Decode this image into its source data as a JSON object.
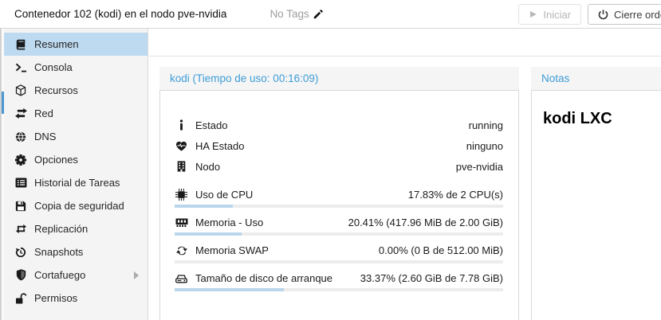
{
  "header": {
    "title": "Contenedor 102 (kodi) en el nodo pve-nvidia",
    "tags_label": "No Tags",
    "start_button": "Iniciar",
    "shutdown_button": "Cierre ordenado"
  },
  "sidebar": {
    "items": [
      {
        "label": "Resumen",
        "icon": "book-icon",
        "selected": true
      },
      {
        "label": "Consola",
        "icon": "terminal-icon",
        "selected": false
      },
      {
        "label": "Recursos",
        "icon": "cube-icon",
        "selected": false
      },
      {
        "label": "Red",
        "icon": "network-arrows-icon",
        "selected": false
      },
      {
        "label": "DNS",
        "icon": "globe-icon",
        "selected": false
      },
      {
        "label": "Opciones",
        "icon": "gear-icon",
        "selected": false
      },
      {
        "label": "Historial de Tareas",
        "icon": "list-icon",
        "selected": false
      },
      {
        "label": "Copia de seguridad",
        "icon": "floppy-icon",
        "selected": false
      },
      {
        "label": "Replicación",
        "icon": "repeat-icon",
        "selected": false
      },
      {
        "label": "Snapshots",
        "icon": "history-icon",
        "selected": false
      },
      {
        "label": "Cortafuego",
        "icon": "shield-icon",
        "selected": false,
        "has_submenu": true
      },
      {
        "label": "Permisos",
        "icon": "unlock-icon",
        "selected": false
      }
    ]
  },
  "status_panel": {
    "title": "kodi (Tiempo de uso: 00:16:09)",
    "rows": [
      {
        "icon": "info-icon",
        "label": "Estado",
        "value": "running"
      },
      {
        "icon": "heartbeat-icon",
        "label": "HA Estado",
        "value": "ninguno"
      },
      {
        "icon": "building-icon",
        "label": "Nodo",
        "value": "pve-nvidia"
      }
    ],
    "meters": [
      {
        "icon": "cpu-icon",
        "label": "Uso de CPU",
        "value": "17.83% de 2 CPU(s)",
        "percent": 17.83
      },
      {
        "icon": "memory-icon",
        "label": "Memoria - Uso",
        "value": "20.41% (417.96 MiB de 2.00 GiB)",
        "percent": 20.41
      },
      {
        "icon": "swap-icon",
        "label": "Memoria SWAP",
        "value": "0.00% (0 B de 512.00 MiB)",
        "percent": 0
      },
      {
        "icon": "disk-icon",
        "label": "Tamaño de disco de arranque",
        "value": "33.37% (2.60 GiB de 7.78 GiB)",
        "percent": 33.37
      }
    ]
  },
  "notes_panel": {
    "title": "Notas",
    "content": "kodi LXC"
  },
  "colors": {
    "accent_blue": "#3e9cd6",
    "selection_blue": "#bedaf0",
    "meter_fill": "#b9d6ec",
    "scroll_thumb": "#4a97d2"
  }
}
